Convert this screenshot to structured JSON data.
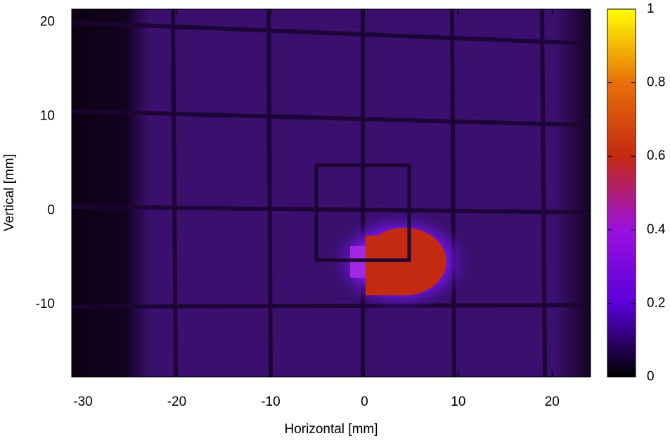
{
  "chart_data": {
    "type": "heatmap",
    "xlabel": "Horizontal [mm]",
    "ylabel": "Vertical [mm]",
    "xlim": [
      -31.2,
      24.1
    ],
    "ylim": [
      -17.7,
      21.4
    ],
    "xticks": [
      -30,
      -20,
      -10,
      0,
      10,
      20
    ],
    "yticks": [
      -10,
      0,
      10,
      20
    ],
    "clim": [
      0,
      1
    ],
    "cticks": [
      0,
      0.2,
      0.4,
      0.6,
      0.8,
      1
    ],
    "palette": [
      "#000000",
      "#5a00d8",
      "#9a10e0",
      "#c42a10",
      "#e8700a",
      "#ffff00"
    ]
  }
}
